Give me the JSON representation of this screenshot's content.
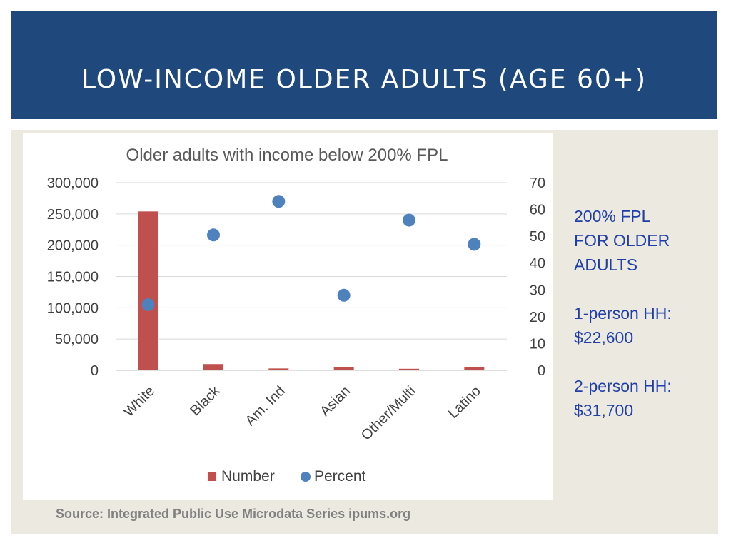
{
  "slide": {
    "title": "Low-Income Older Adults (Age 60+)"
  },
  "side_info": {
    "heading_line1": "200% FPL",
    "heading_line2": "FOR OLDER",
    "heading_line3": "ADULTS",
    "one_person_label": "1-person HH:",
    "one_person_value": "$22,600",
    "two_person_label": "2-person HH:",
    "two_person_value": "$31,700"
  },
  "source": "Source: Integrated Public Use Microdata Series ipums.org",
  "colors": {
    "title_bar": "#1f497d",
    "bar": "#c0504d",
    "point": "#4f81bd",
    "side_text": "#1f3ea8"
  },
  "chart_data": {
    "type": "bar",
    "title": "Older adults with income below 200% FPL",
    "categories": [
      "White",
      "Black",
      "Am. Ind",
      "Asian",
      "Other/Multi",
      "Latino"
    ],
    "series": [
      {
        "name": "Number",
        "type": "bar",
        "axis": "left",
        "values": [
          254000,
          10000,
          3000,
          5000,
          2500,
          5000
        ],
        "color": "#c0504d"
      },
      {
        "name": "Percent",
        "type": "scatter",
        "axis": "right",
        "values": [
          24.5,
          50.5,
          63,
          28,
          56,
          47
        ],
        "color": "#4f81bd"
      }
    ],
    "ylim_left": [
      0,
      300000
    ],
    "yticks_left": [
      "0",
      "50,000",
      "100,000",
      "150,000",
      "200,000",
      "250,000",
      "300,000"
    ],
    "ylim_right": [
      0,
      70
    ],
    "yticks_right": [
      "0",
      "10",
      "20",
      "30",
      "40",
      "50",
      "60",
      "70"
    ],
    "grid": true,
    "legend_position": "bottom"
  }
}
